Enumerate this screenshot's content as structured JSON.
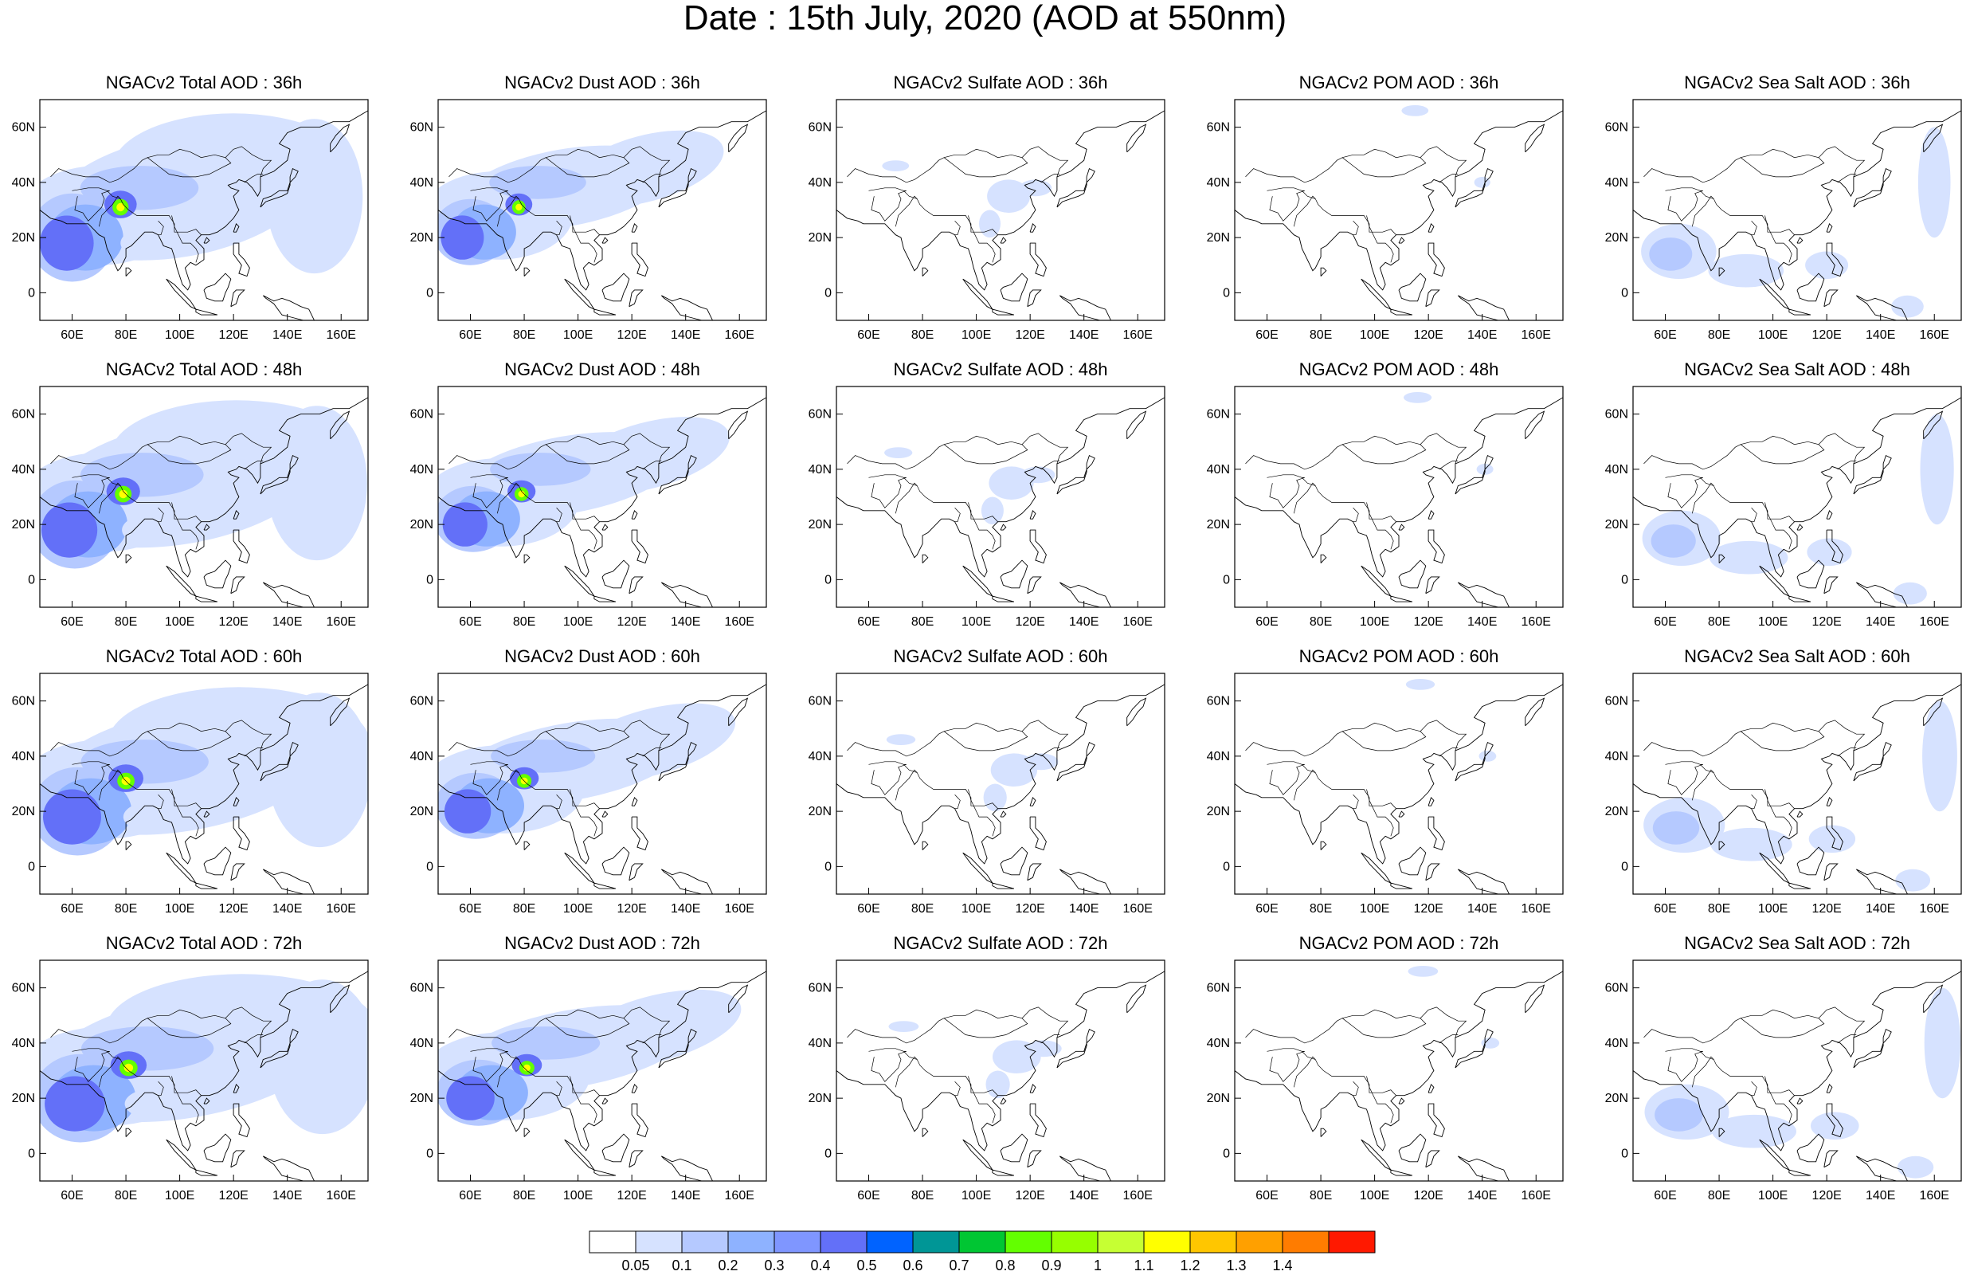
{
  "title": "Date : 15th July, 2020 (AOD at 550nm)",
  "axes": {
    "lat_ticks": [
      "60N",
      "40N",
      "20N",
      "0"
    ],
    "lat_values": [
      60,
      40,
      20,
      0
    ],
    "lon_ticks": [
      "60E",
      "80E",
      "100E",
      "120E",
      "140E",
      "160E"
    ],
    "lon_values": [
      60,
      80,
      100,
      120,
      140,
      160
    ],
    "lon_range": [
      48,
      170
    ],
    "lat_range": [
      -10,
      70
    ]
  },
  "rows": [
    {
      "hour": "36h",
      "titles": [
        "NGACv2 Total AOD : 36h",
        "NGACv2 Dust AOD : 36h",
        "NGACv2 Sulfate AOD : 36h",
        "NGACv2 POM AOD : 36h",
        "NGACv2 Sea Salt AOD : 36h"
      ]
    },
    {
      "hour": "48h",
      "titles": [
        "NGACv2 Total AOD : 48h",
        "NGACv2 Dust AOD : 48h",
        "NGACv2 Sulfate AOD : 48h",
        "NGACv2 POM AOD : 48h",
        "NGACv2 Sea Salt AOD : 48h"
      ]
    },
    {
      "hour": "60h",
      "titles": [
        "NGACv2 Total AOD : 60h",
        "NGACv2 Dust AOD : 60h",
        "NGACv2 Sulfate AOD : 60h",
        "NGACv2 POM AOD : 60h",
        "NGACv2 Sea Salt AOD : 60h"
      ]
    },
    {
      "hour": "72h",
      "titles": [
        "NGACv2 Total AOD : 72h",
        "NGACv2 Dust AOD : 72h",
        "NGACv2 Sulfate AOD : 72h",
        "NGACv2 POM AOD : 72h",
        "NGACv2 Sea Salt  AOD : 72h"
      ]
    }
  ],
  "colorbar": {
    "labels": [
      "0.05",
      "0.1",
      "0.2",
      "0.3",
      "0.4",
      "0.5",
      "0.6",
      "0.7",
      "0.8",
      "0.9",
      "1",
      "1.1",
      "1.2",
      "1.3",
      "1.4"
    ],
    "colors": [
      "#ffffff",
      "#d6e2ff",
      "#b5c9ff",
      "#8eb2ff",
      "#7f96ff",
      "#6370f8",
      "#0063ff",
      "#009696",
      "#00c633",
      "#63ff00",
      "#96ff00",
      "#c6ff33",
      "#ffff00",
      "#ffc600",
      "#ffa000",
      "#ff7c00",
      "#ff1900"
    ]
  },
  "colors": {
    "coast": "#000000",
    "aod_light": "#d6e2ff",
    "aod_mid": "#b5c9ff",
    "aod_blue": "#8eb2ff",
    "aod_dark": "#6370f8",
    "aod_green": "#63ff00",
    "aod_yellow": "#ffff00"
  }
}
